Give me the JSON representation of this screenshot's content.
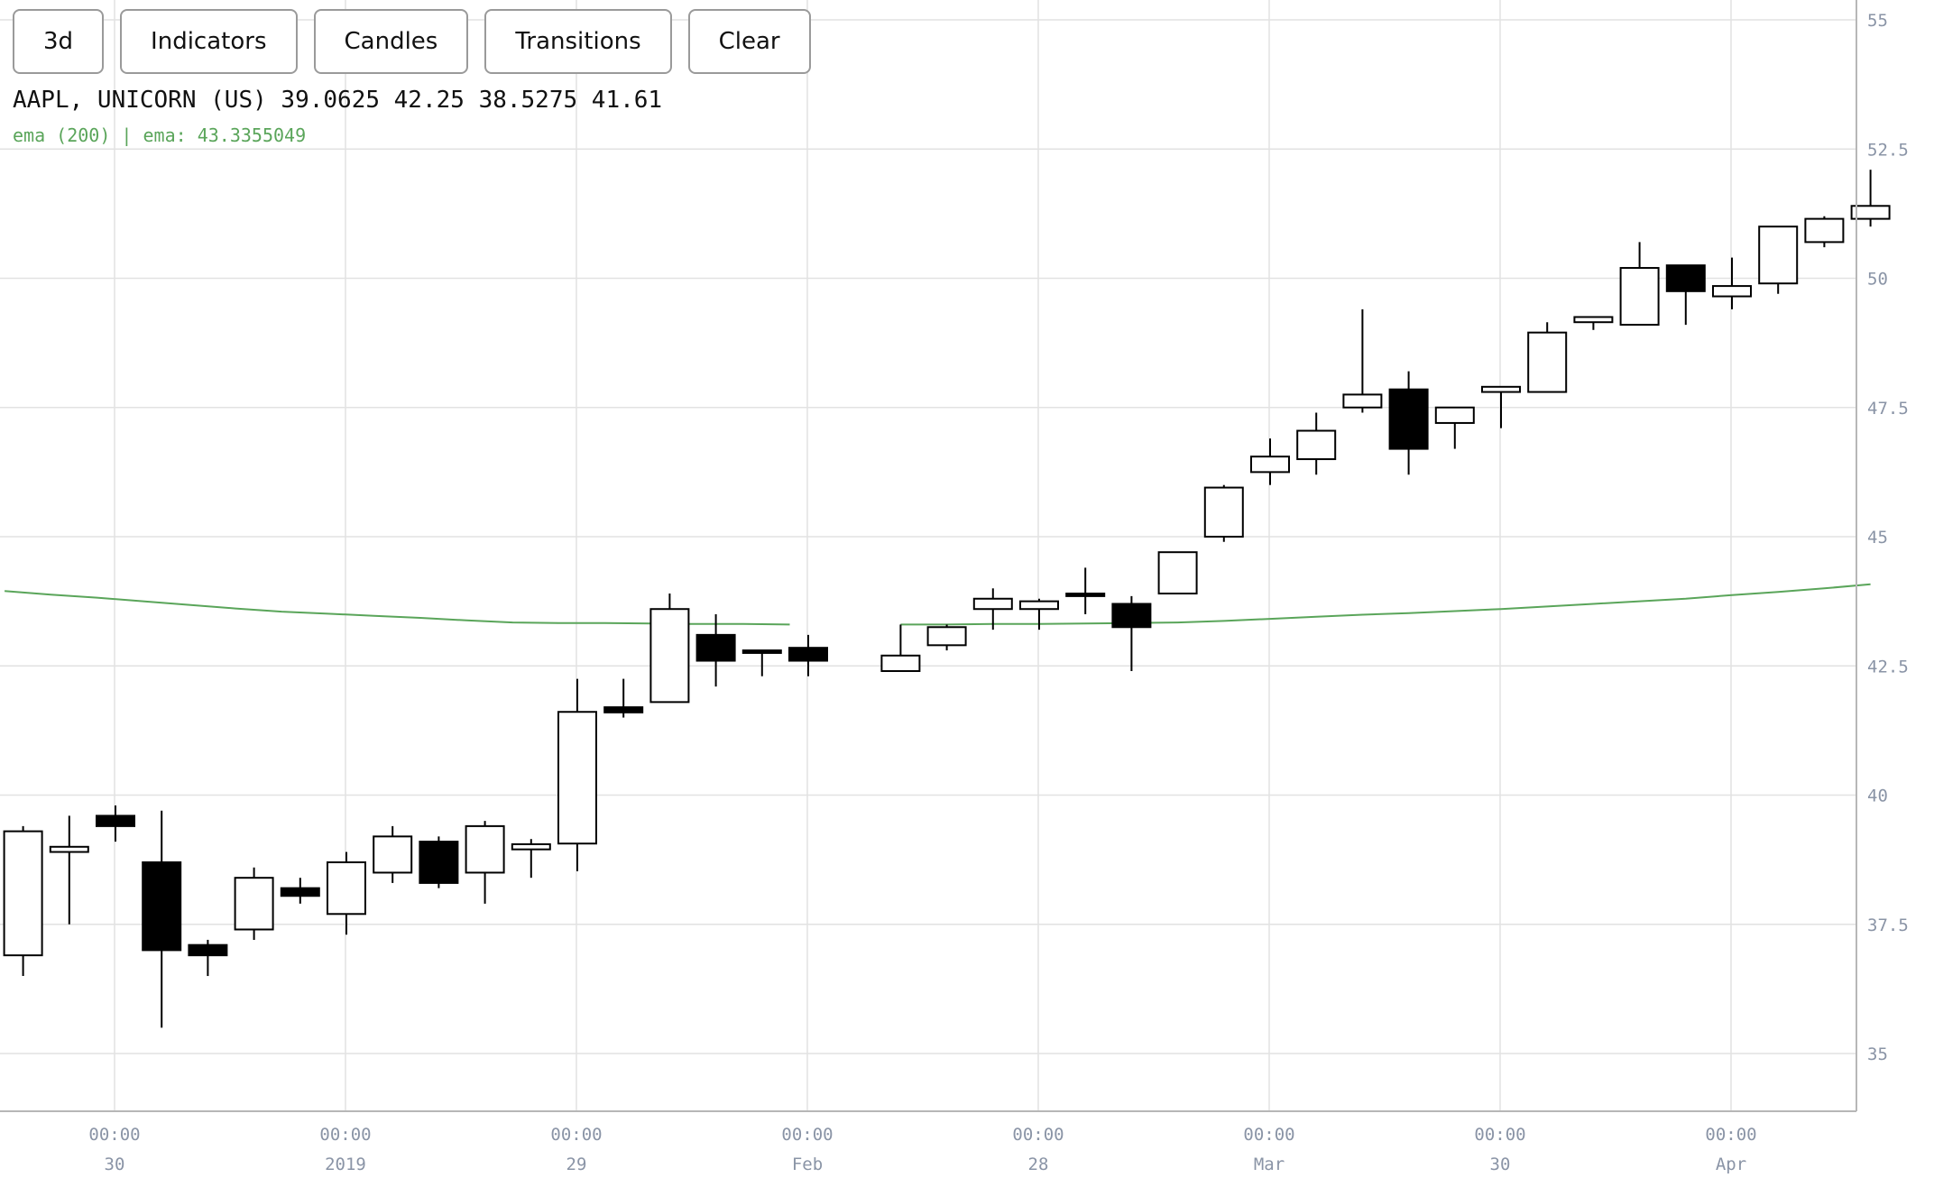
{
  "toolbar": {
    "buttons": [
      "3d",
      "Indicators",
      "Candles",
      "Transitions",
      "Clear"
    ]
  },
  "legend": {
    "symbol": "AAPL, UNICORN (US)",
    "ohlc": "39.0625 42.25 38.5275 41.61",
    "indicator": "ema (200) | ema: 43.3355049"
  },
  "colors": {
    "candle_up_fill": "#ffffff",
    "candle_down_fill": "#000000",
    "candle_stroke": "#000000",
    "ema_line": "#5aa55a",
    "grid": "#e2e2e2",
    "axis_text": "#8a94a6"
  },
  "chart_data": {
    "type": "candlestick",
    "interval": "3d",
    "ylim": [
      33.8,
      55
    ],
    "y_ticks": [
      "35",
      "37.5",
      "40",
      "42.5",
      "45",
      "47.5",
      "50",
      "52.5",
      "55"
    ],
    "x_ticks": [
      {
        "time": "00:00",
        "date": "30"
      },
      {
        "time": "00:00",
        "date": "2019"
      },
      {
        "time": "00:00",
        "date": "29"
      },
      {
        "time": "00:00",
        "date": "Feb"
      },
      {
        "time": "00:00",
        "date": "28"
      },
      {
        "time": "00:00",
        "date": "Mar"
      },
      {
        "time": "00:00",
        "date": "30"
      },
      {
        "time": "00:00",
        "date": "Apr"
      }
    ],
    "grid": true,
    "candles": [
      {
        "o": 36.9,
        "h": 39.4,
        "l": 36.5,
        "c": 39.3
      },
      {
        "o": 38.9,
        "h": 39.6,
        "l": 37.5,
        "c": 39.0
      },
      {
        "o": 39.6,
        "h": 39.8,
        "l": 39.1,
        "c": 39.4
      },
      {
        "o": 38.7,
        "h": 39.7,
        "l": 35.5,
        "c": 37.0
      },
      {
        "o": 37.1,
        "h": 37.2,
        "l": 36.5,
        "c": 36.9
      },
      {
        "o": 37.4,
        "h": 38.6,
        "l": 37.2,
        "c": 38.4
      },
      {
        "o": 38.2,
        "h": 38.4,
        "l": 37.9,
        "c": 38.05
      },
      {
        "o": 37.7,
        "h": 38.9,
        "l": 37.3,
        "c": 38.7
      },
      {
        "o": 38.5,
        "h": 39.4,
        "l": 38.3,
        "c": 39.2
      },
      {
        "o": 39.1,
        "h": 39.2,
        "l": 38.2,
        "c": 38.3
      },
      {
        "o": 38.5,
        "h": 39.5,
        "l": 37.9,
        "c": 39.4
      },
      {
        "o": 38.95,
        "h": 39.15,
        "l": 38.4,
        "c": 39.05
      },
      {
        "o": 39.0625,
        "h": 42.25,
        "l": 38.5275,
        "c": 41.61
      },
      {
        "o": 41.7,
        "h": 42.25,
        "l": 41.5,
        "c": 41.6
      },
      {
        "o": 41.8,
        "h": 43.9,
        "l": 41.8,
        "c": 43.6
      },
      {
        "o": 43.1,
        "h": 43.5,
        "l": 42.1,
        "c": 42.6
      },
      {
        "o": 42.8,
        "h": 42.8,
        "l": 42.3,
        "c": 42.75
      },
      {
        "o": 42.85,
        "h": 43.1,
        "l": 42.3,
        "c": 42.6
      },
      null,
      {
        "o": 42.4,
        "h": 43.3,
        "l": 42.4,
        "c": 42.7
      },
      {
        "o": 42.9,
        "h": 43.3,
        "l": 42.8,
        "c": 43.25
      },
      {
        "o": 43.6,
        "h": 44.0,
        "l": 43.2,
        "c": 43.8
      },
      {
        "o": 43.6,
        "h": 43.8,
        "l": 43.2,
        "c": 43.75
      },
      {
        "o": 43.9,
        "h": 44.4,
        "l": 43.5,
        "c": 43.85
      },
      {
        "o": 43.7,
        "h": 43.85,
        "l": 42.4,
        "c": 43.25
      },
      {
        "o": 43.9,
        "h": 44.7,
        "l": 43.9,
        "c": 44.7
      },
      {
        "o": 45.0,
        "h": 46.0,
        "l": 44.9,
        "c": 45.95
      },
      {
        "o": 46.25,
        "h": 46.9,
        "l": 46.0,
        "c": 46.55
      },
      {
        "o": 46.5,
        "h": 47.4,
        "l": 46.2,
        "c": 47.05
      },
      {
        "o": 47.5,
        "h": 49.4,
        "l": 47.4,
        "c": 47.75
      },
      {
        "o": 47.85,
        "h": 48.2,
        "l": 46.2,
        "c": 46.7
      },
      {
        "o": 47.2,
        "h": 47.5,
        "l": 46.7,
        "c": 47.5
      },
      {
        "o": 47.8,
        "h": 47.9,
        "l": 47.1,
        "c": 47.9
      },
      {
        "o": 47.8,
        "h": 49.15,
        "l": 47.8,
        "c": 48.95
      },
      {
        "o": 49.15,
        "h": 49.25,
        "l": 49.0,
        "c": 49.25
      },
      {
        "o": 49.1,
        "h": 50.7,
        "l": 49.1,
        "c": 50.2
      },
      {
        "o": 50.25,
        "h": 50.25,
        "l": 49.1,
        "c": 49.75
      },
      {
        "o": 49.65,
        "h": 50.4,
        "l": 49.4,
        "c": 49.85
      },
      {
        "o": 49.9,
        "h": 51.0,
        "l": 49.7,
        "c": 51.0
      },
      {
        "o": 50.7,
        "h": 51.2,
        "l": 50.6,
        "c": 51.15
      },
      {
        "o": 51.15,
        "h": 52.1,
        "l": 51.0,
        "c": 51.4
      }
    ],
    "series": [
      {
        "name": "ema",
        "segments": [
          {
            "start_index": -0.4,
            "values": [
              43.95,
              43.88,
              43.82,
              43.75,
              43.68,
              43.61,
              43.55,
              43.51,
              43.47,
              43.43,
              43.38,
              43.34,
              43.33,
              43.33,
              43.32,
              43.31,
              43.31,
              43.3
            ]
          },
          {
            "start_index": 19,
            "values": [
              43.3,
              43.3,
              43.31,
              43.31,
              43.32,
              43.33,
              43.34,
              43.37,
              43.41,
              43.45,
              43.49,
              43.52,
              43.56,
              43.6,
              43.65,
              43.7,
              43.75,
              43.8,
              43.87,
              43.93,
              44.0,
              44.08
            ]
          }
        ]
      }
    ]
  }
}
